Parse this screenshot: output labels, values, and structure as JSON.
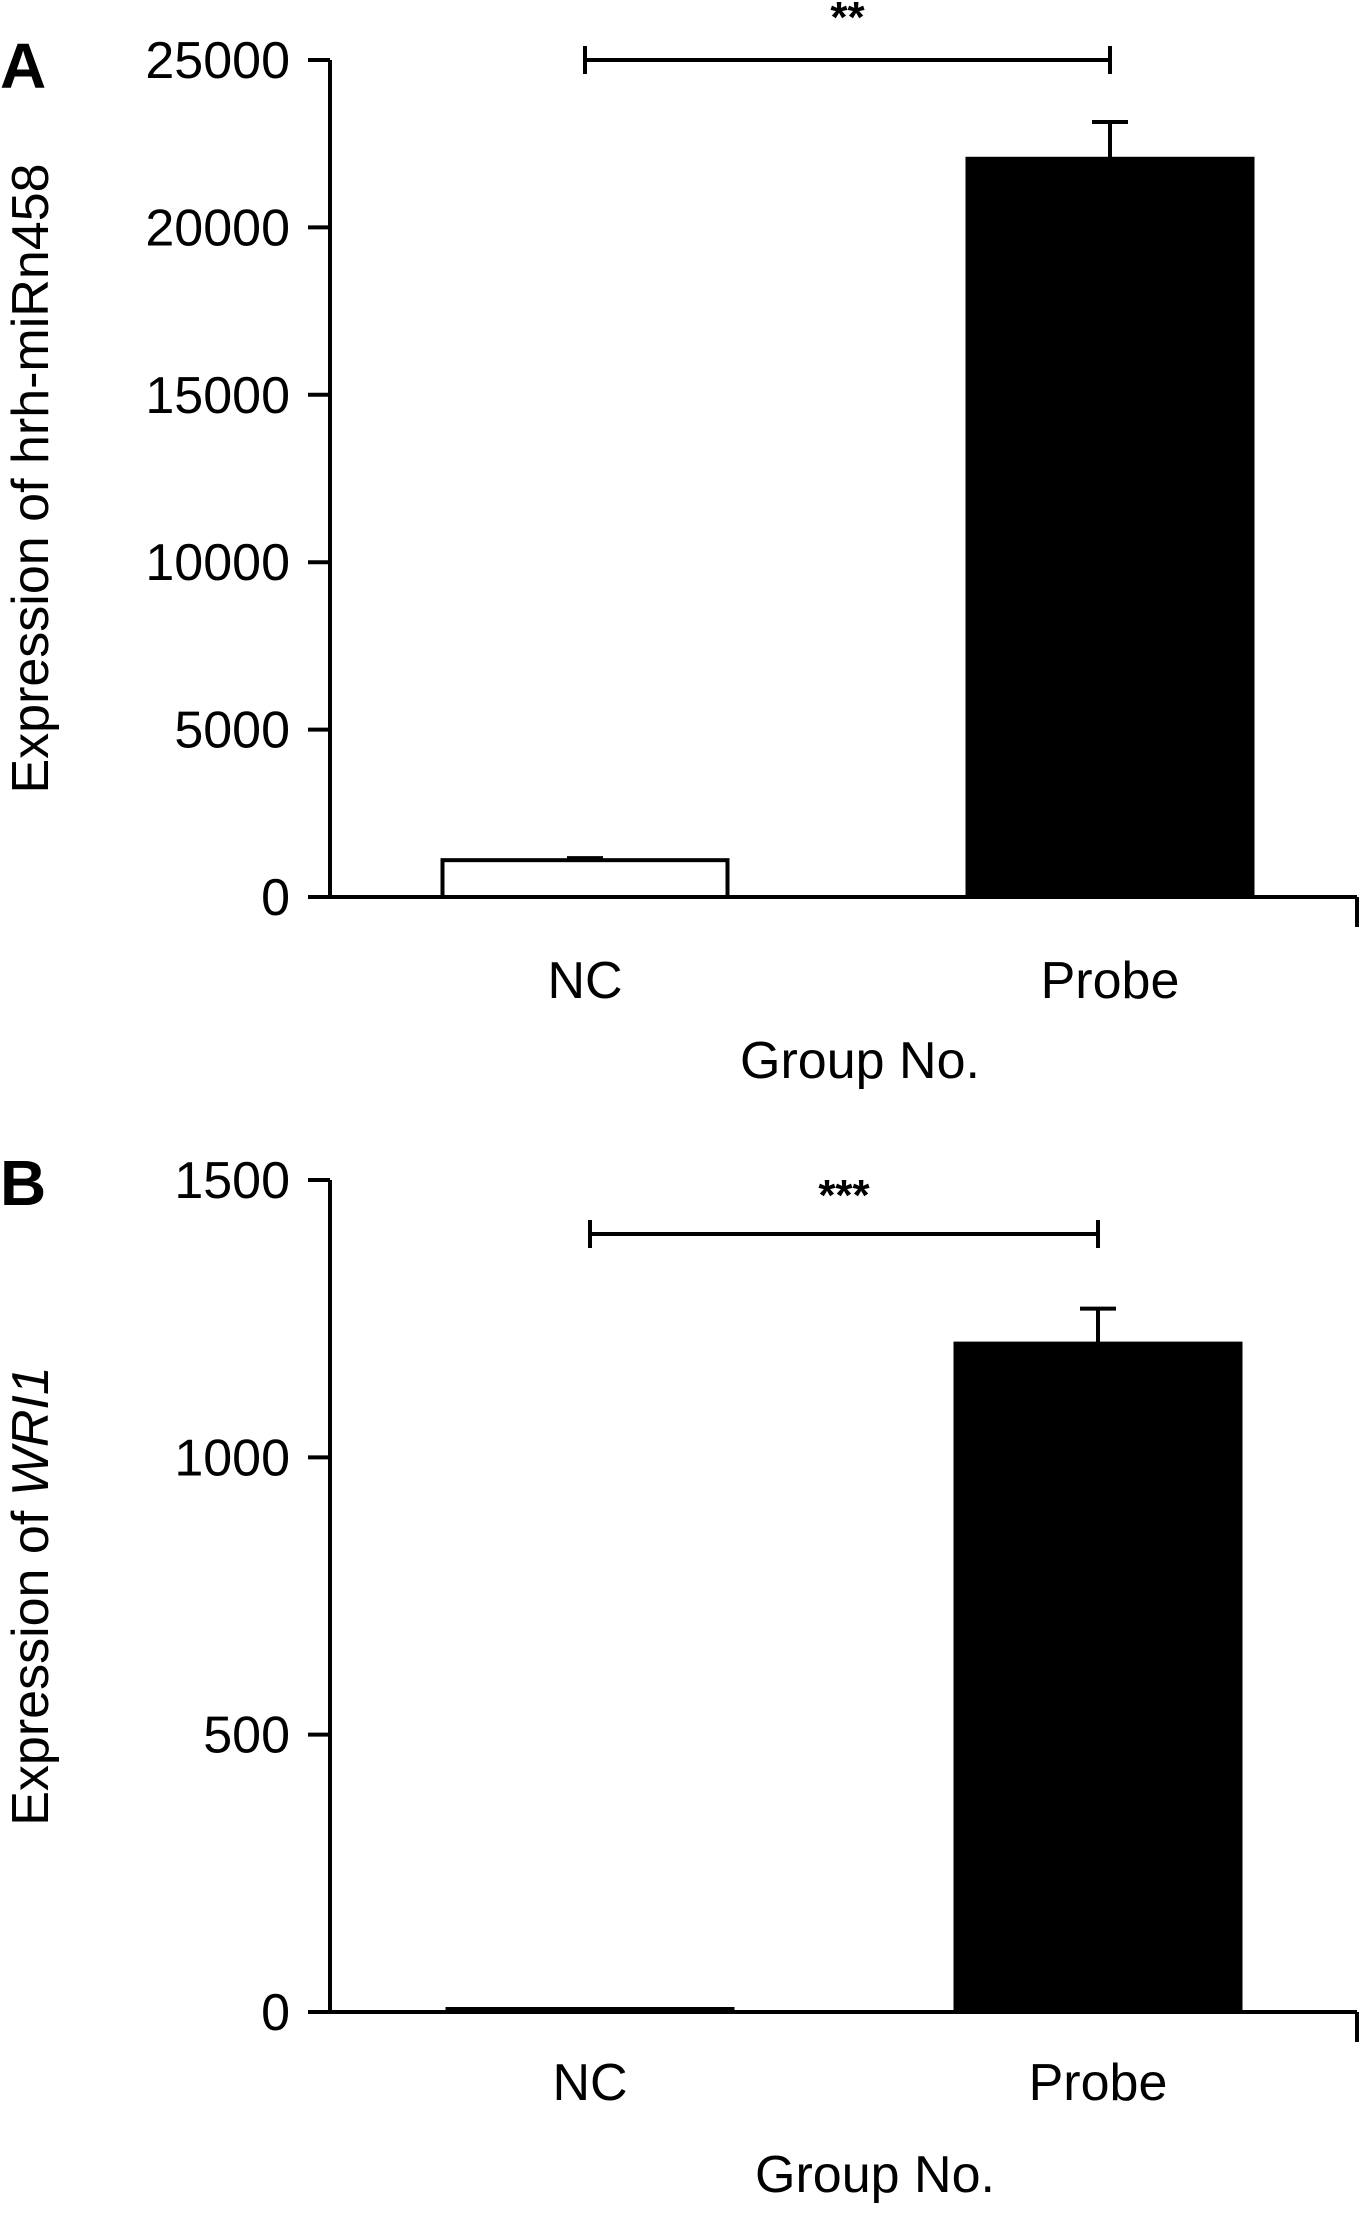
{
  "chart_data": [
    {
      "type": "bar",
      "panel": "A",
      "categories": [
        "NC",
        "Probe"
      ],
      "values": [
        1100,
        22050
      ],
      "errors": [
        60,
        1100
      ],
      "bar_fill": [
        "#ffffff",
        "#000000"
      ],
      "xlabel": "Group No.",
      "ylabel": "Expression of hrh-miRn458",
      "ylabel_italic": "",
      "ylim": [
        0,
        25000
      ],
      "yticks": [
        0,
        5000,
        10000,
        15000,
        20000,
        25000
      ],
      "significance": {
        "from": "NC",
        "to": "Probe",
        "label": "**"
      },
      "grid": false
    },
    {
      "type": "bar",
      "panel": "B",
      "categories": [
        "NC",
        "Probe"
      ],
      "values": [
        5,
        1205
      ],
      "errors": [
        0,
        63
      ],
      "bar_fill": [
        "#ffffff",
        "#000000"
      ],
      "xlabel": "Group No.",
      "ylabel": "Expression of ",
      "ylabel_italic": "WRI1",
      "ylim": [
        0,
        1500
      ],
      "yticks": [
        0,
        500,
        1000,
        1500
      ],
      "significance": {
        "from": "NC",
        "to": "Probe",
        "label": "***"
      },
      "grid": false
    }
  ]
}
